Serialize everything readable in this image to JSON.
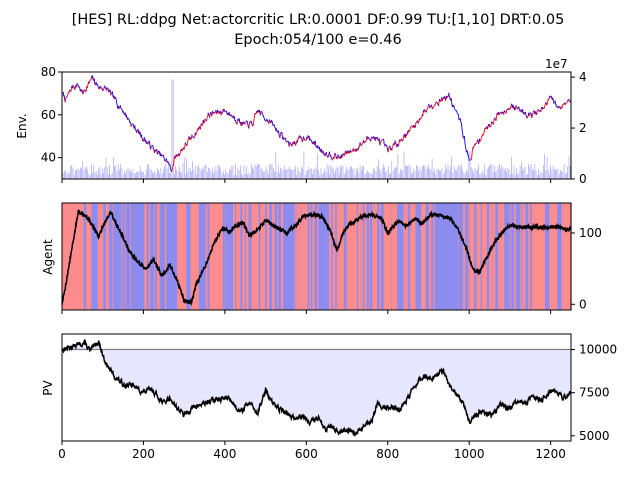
{
  "figure": {
    "title_line1": "[HES] RL:ddpg Net:actorcritic LR:0.0001 DF:0.99 TU:[1,10] DRT:0.05",
    "title_line2": "Epoch:054/100 e=0.46"
  },
  "chart_data": [
    {
      "type": "line",
      "name": "env",
      "ylabel": "Env.",
      "xlim": [
        0,
        1250
      ],
      "ylim": [
        30,
        80
      ],
      "yticks": [
        40,
        60,
        80
      ],
      "secondary_axis": {
        "ylim": [
          0,
          4.2
        ],
        "yticks": [
          0,
          2,
          4
        ],
        "offset_label": "1e7",
        "volume_color": "#8c8cf0"
      },
      "price_keypoints": [
        [
          0,
          70
        ],
        [
          10,
          67
        ],
        [
          25,
          73
        ],
        [
          40,
          74
        ],
        [
          50,
          70
        ],
        [
          75,
          77
        ],
        [
          90,
          73
        ],
        [
          110,
          72
        ],
        [
          130,
          67
        ],
        [
          150,
          62
        ],
        [
          170,
          56
        ],
        [
          200,
          49
        ],
        [
          230,
          43
        ],
        [
          260,
          38
        ],
        [
          268,
          34
        ],
        [
          278,
          40
        ],
        [
          300,
          45
        ],
        [
          330,
          52
        ],
        [
          360,
          60
        ],
        [
          400,
          62
        ],
        [
          430,
          58
        ],
        [
          450,
          55
        ],
        [
          470,
          56
        ],
        [
          480,
          62
        ],
        [
          510,
          57
        ],
        [
          540,
          50
        ],
        [
          560,
          46
        ],
        [
          600,
          50
        ],
        [
          640,
          43
        ],
        [
          680,
          40
        ],
        [
          720,
          44
        ],
        [
          760,
          50
        ],
        [
          790,
          46
        ],
        [
          800,
          43
        ],
        [
          830,
          48
        ],
        [
          870,
          56
        ],
        [
          900,
          64
        ],
        [
          920,
          66
        ],
        [
          950,
          69
        ],
        [
          980,
          56
        ],
        [
          1000,
          38
        ],
        [
          1010,
          44
        ],
        [
          1040,
          53
        ],
        [
          1070,
          60
        ],
        [
          1100,
          64
        ],
        [
          1130,
          62
        ],
        [
          1150,
          60
        ],
        [
          1180,
          62
        ],
        [
          1200,
          68
        ],
        [
          1220,
          63
        ],
        [
          1250,
          68
        ]
      ],
      "line_colors": [
        "#0000ff",
        "#ff0000"
      ]
    },
    {
      "type": "line",
      "name": "agent",
      "ylabel": "Agent",
      "xlim": [
        0,
        1250
      ],
      "ylim": [
        -8,
        142
      ],
      "secondary_axis": {
        "yticks": [
          0,
          100
        ]
      },
      "position_keypoints": [
        [
          0,
          0
        ],
        [
          10,
          30
        ],
        [
          25,
          80
        ],
        [
          40,
          130
        ],
        [
          50,
          128
        ],
        [
          65,
          120
        ],
        [
          75,
          110
        ],
        [
          90,
          95
        ],
        [
          105,
          115
        ],
        [
          120,
          130
        ],
        [
          135,
          110
        ],
        [
          150,
          95
        ],
        [
          165,
          75
        ],
        [
          185,
          60
        ],
        [
          205,
          50
        ],
        [
          225,
          62
        ],
        [
          245,
          40
        ],
        [
          265,
          55
        ],
        [
          285,
          30
        ],
        [
          300,
          5
        ],
        [
          318,
          2
        ],
        [
          330,
          28
        ],
        [
          345,
          45
        ],
        [
          360,
          65
        ],
        [
          375,
          88
        ],
        [
          395,
          108
        ],
        [
          410,
          100
        ],
        [
          425,
          110
        ],
        [
          445,
          115
        ],
        [
          460,
          96
        ],
        [
          480,
          103
        ],
        [
          500,
          118
        ],
        [
          520,
          110
        ],
        [
          550,
          100
        ],
        [
          575,
          112
        ],
        [
          595,
          124
        ],
        [
          620,
          126
        ],
        [
          640,
          122
        ],
        [
          660,
          102
        ],
        [
          675,
          75
        ],
        [
          690,
          100
        ],
        [
          705,
          112
        ],
        [
          740,
          124
        ],
        [
          760,
          126
        ],
        [
          785,
          120
        ],
        [
          800,
          100
        ],
        [
          825,
          116
        ],
        [
          845,
          110
        ],
        [
          870,
          120
        ],
        [
          885,
          112
        ],
        [
          905,
          126
        ],
        [
          935,
          124
        ],
        [
          955,
          120
        ],
        [
          975,
          102
        ],
        [
          995,
          75
        ],
        [
          1010,
          48
        ],
        [
          1025,
          45
        ],
        [
          1040,
          62
        ],
        [
          1060,
          85
        ],
        [
          1080,
          100
        ],
        [
          1095,
          110
        ],
        [
          1130,
          108
        ],
        [
          1150,
          108
        ],
        [
          1180,
          108
        ],
        [
          1200,
          108
        ],
        [
          1220,
          108
        ],
        [
          1240,
          104
        ],
        [
          1250,
          106
        ]
      ],
      "background_colors": [
        "#ff8c8c",
        "#8c8cf0"
      ],
      "line_color": "#000000"
    },
    {
      "type": "area",
      "name": "pv",
      "ylabel": "PV",
      "xlim": [
        0,
        1250
      ],
      "ylim": [
        4700,
        10900
      ],
      "secondary_axis": {
        "yticks": [
          5000,
          7500,
          10000
        ]
      },
      "xticks": [
        0,
        200,
        400,
        600,
        800,
        1000,
        1200
      ],
      "baseline": 10000,
      "pv_keypoints": [
        [
          0,
          10000
        ],
        [
          30,
          10200
        ],
        [
          55,
          10400
        ],
        [
          70,
          9900
        ],
        [
          90,
          10500
        ],
        [
          100,
          9700
        ],
        [
          110,
          9100
        ],
        [
          130,
          8400
        ],
        [
          150,
          8000
        ],
        [
          175,
          7900
        ],
        [
          200,
          7500
        ],
        [
          220,
          7700
        ],
        [
          235,
          7300
        ],
        [
          250,
          6900
        ],
        [
          265,
          7200
        ],
        [
          280,
          6700
        ],
        [
          300,
          6200
        ],
        [
          320,
          6600
        ],
        [
          340,
          6800
        ],
        [
          360,
          7000
        ],
        [
          380,
          7100
        ],
        [
          410,
          7200
        ],
        [
          430,
          6600
        ],
        [
          445,
          6500
        ],
        [
          460,
          7000
        ],
        [
          480,
          6300
        ],
        [
          500,
          7600
        ],
        [
          520,
          6800
        ],
        [
          540,
          6500
        ],
        [
          570,
          6000
        ],
        [
          590,
          6200
        ],
        [
          610,
          5800
        ],
        [
          630,
          6000
        ],
        [
          650,
          5400
        ],
        [
          665,
          5600
        ],
        [
          680,
          5100
        ],
        [
          700,
          5300
        ],
        [
          720,
          5100
        ],
        [
          740,
          5500
        ],
        [
          760,
          5800
        ],
        [
          775,
          6900
        ],
        [
          790,
          6600
        ],
        [
          810,
          6700
        ],
        [
          830,
          6500
        ],
        [
          850,
          7200
        ],
        [
          870,
          8000
        ],
        [
          890,
          8500
        ],
        [
          910,
          8200
        ],
        [
          935,
          8800
        ],
        [
          950,
          7900
        ],
        [
          970,
          7400
        ],
        [
          985,
          7000
        ],
        [
          1000,
          5800
        ],
        [
          1015,
          6200
        ],
        [
          1035,
          6400
        ],
        [
          1055,
          6200
        ],
        [
          1075,
          6800
        ],
        [
          1100,
          6600
        ],
        [
          1120,
          7000
        ],
        [
          1140,
          6900
        ],
        [
          1160,
          7300
        ],
        [
          1180,
          7100
        ],
        [
          1200,
          7700
        ],
        [
          1215,
          7600
        ],
        [
          1230,
          7200
        ],
        [
          1250,
          7500
        ]
      ],
      "fill_color": "#e6e6ff",
      "line_color": "#000000",
      "baseline_color": "#808080"
    }
  ]
}
